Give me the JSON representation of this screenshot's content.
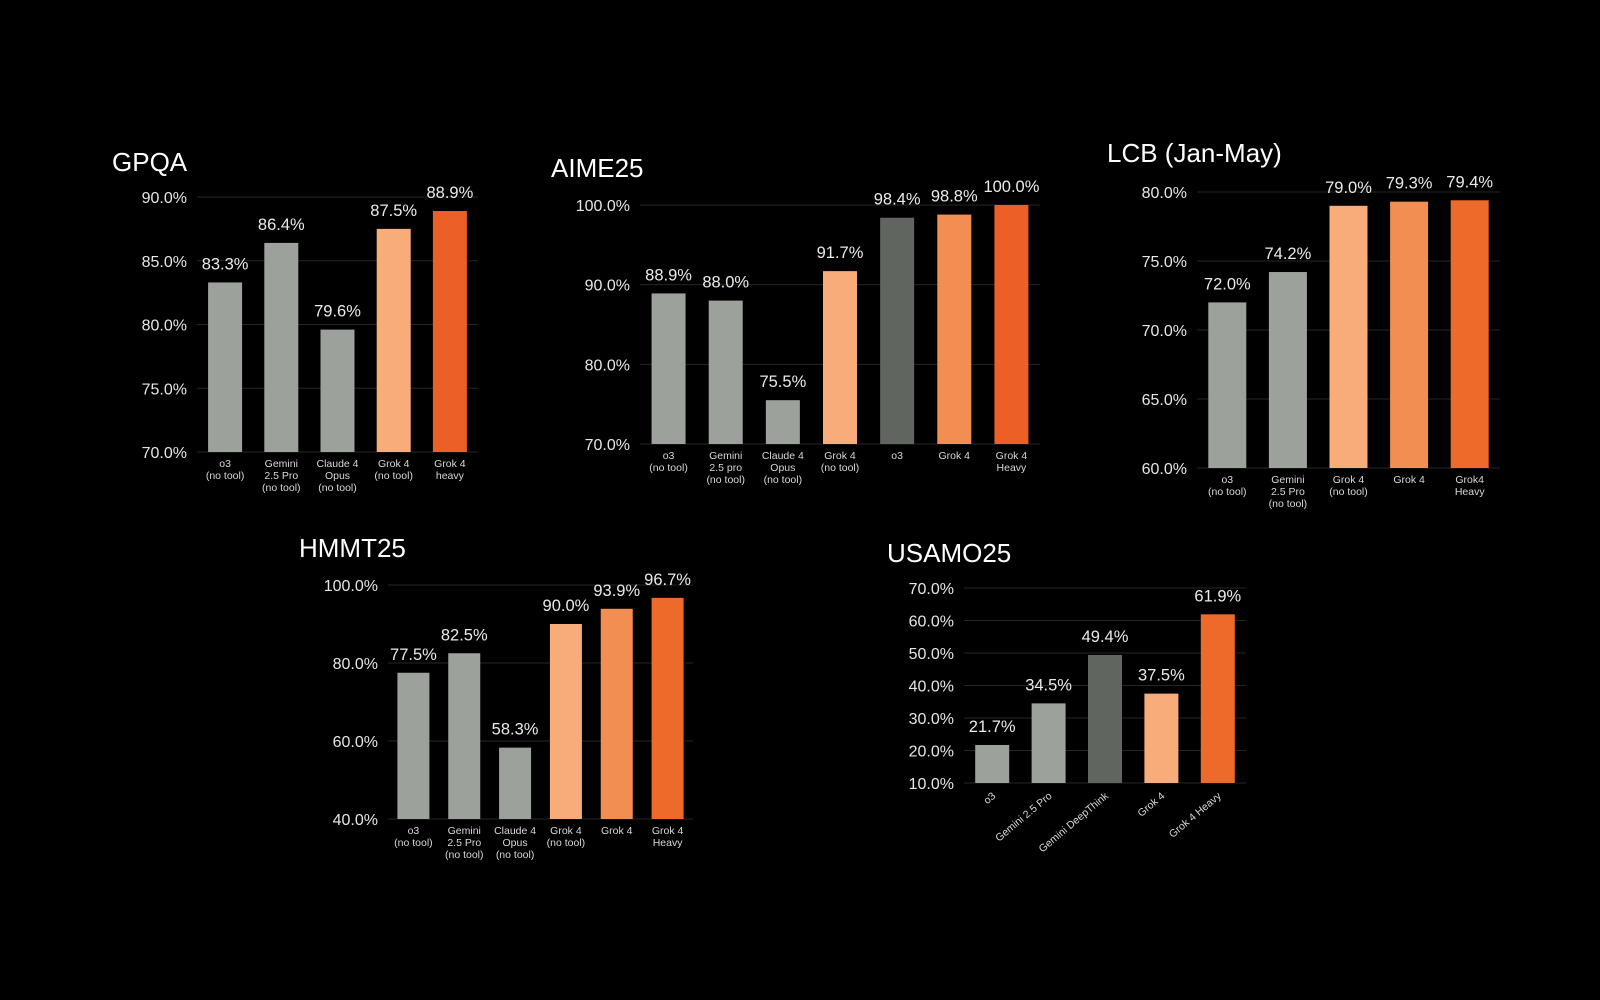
{
  "colors": {
    "gray": "#9da19c",
    "dark_gray": "#61655f",
    "light_orange": "#f7ac7a",
    "mid_orange": "#f28e52",
    "orange": "#ed6a2b",
    "heavy": "#ec5f26"
  },
  "chart_data": [
    {
      "id": "gpqa",
      "type": "bar",
      "title": "GPQA",
      "ylim": [
        70,
        90
      ],
      "yticks": [
        "70.0%",
        "75.0%",
        "80.0%",
        "85.0%",
        "90.0%"
      ],
      "ytick_values": [
        70,
        75,
        80,
        85,
        90
      ],
      "categories": [
        [
          "o3",
          "(no tool)"
        ],
        [
          "Gemini",
          "2.5 Pro",
          "(no tool)"
        ],
        [
          "Claude 4",
          "Opus",
          "(no tool)"
        ],
        [
          "Grok 4",
          "(no tool)"
        ],
        [
          "Grok 4",
          "heavy"
        ]
      ],
      "values": [
        83.3,
        86.4,
        79.6,
        87.5,
        88.9
      ],
      "labels": [
        "83.3%",
        "86.4%",
        "79.6%",
        "87.5%",
        "88.9%"
      ],
      "bar_colors": [
        "#9da19c",
        "#9da19c",
        "#9da19c",
        "#f7ac7a",
        "#ec5f26"
      ],
      "grid": true
    },
    {
      "id": "aime25",
      "type": "bar",
      "title": "AIME25",
      "ylim": [
        70,
        100
      ],
      "yticks": [
        "70.0%",
        "80.0%",
        "90.0%",
        "100.0%"
      ],
      "ytick_values": [
        70,
        80,
        90,
        100
      ],
      "categories": [
        [
          "o3",
          "(no tool)"
        ],
        [
          "Gemini",
          "2.5 pro",
          "(no tool)"
        ],
        [
          "Claude 4",
          "Opus",
          "(no tool)"
        ],
        [
          "Grok 4",
          "(no tool)"
        ],
        [
          "o3"
        ],
        [
          "Grok 4"
        ],
        [
          "Grok 4",
          "Heavy"
        ]
      ],
      "values": [
        88.9,
        88.0,
        75.5,
        91.7,
        98.4,
        98.8,
        100.0
      ],
      "labels": [
        "88.9%",
        "88.0%",
        "75.5%",
        "91.7%",
        "98.4%",
        "98.8%",
        "100.0%"
      ],
      "bar_colors": [
        "#9da19c",
        "#9da19c",
        "#9da19c",
        "#f7ac7a",
        "#61655f",
        "#f28e52",
        "#ec5f26"
      ],
      "grid": true
    },
    {
      "id": "lcb",
      "type": "bar",
      "title": "LCB (Jan-May)",
      "ylim": [
        60,
        80
      ],
      "yticks": [
        "60.0%",
        "65.0%",
        "70.0%",
        "75.0%",
        "80.0%"
      ],
      "ytick_values": [
        60,
        65,
        70,
        75,
        80
      ],
      "categories": [
        [
          "o3",
          "(no tool)"
        ],
        [
          "Gemini",
          "2.5 Pro",
          "(no tool)"
        ],
        [
          "Grok 4",
          "(no tool)"
        ],
        [
          "Grok 4"
        ],
        [
          "Grok4",
          "Heavy"
        ]
      ],
      "values": [
        72.0,
        74.2,
        79.0,
        79.3,
        79.4
      ],
      "labels": [
        "72.0%",
        "74.2%",
        "79.0%",
        "79.3%",
        "79.4%"
      ],
      "bar_colors": [
        "#9da19c",
        "#9da19c",
        "#f7ac7a",
        "#f28e52",
        "#ed6a2b"
      ],
      "grid": true
    },
    {
      "id": "hmmt25",
      "type": "bar",
      "title": "HMMT25",
      "ylim": [
        40,
        100
      ],
      "yticks": [
        "40.0%",
        "60.0%",
        "80.0%",
        "100.0%"
      ],
      "ytick_values": [
        40,
        60,
        80,
        100
      ],
      "categories": [
        [
          "o3",
          "(no tool)"
        ],
        [
          "Gemini",
          "2.5 Pro",
          "(no tool)"
        ],
        [
          "Claude 4",
          "Opus",
          "(no tool)"
        ],
        [
          "Grok 4",
          "(no tool)"
        ],
        [
          "Grok 4"
        ],
        [
          "Grok 4",
          "Heavy"
        ]
      ],
      "values": [
        77.5,
        82.5,
        58.3,
        90.0,
        93.9,
        96.7
      ],
      "labels": [
        "77.5%",
        "82.5%",
        "58.3%",
        "90.0%",
        "93.9%",
        "96.7%"
      ],
      "bar_colors": [
        "#9da19c",
        "#9da19c",
        "#9da19c",
        "#f7ac7a",
        "#f28e52",
        "#ed6a2b"
      ],
      "grid": true
    },
    {
      "id": "usamo25",
      "type": "bar",
      "title": "USAMO25",
      "ylim": [
        10,
        70
      ],
      "yticks": [
        "10.0%",
        "20.0%",
        "30.0%",
        "40.0%",
        "50.0%",
        "60.0%",
        "70.0%"
      ],
      "ytick_values": [
        10,
        20,
        30,
        40,
        50,
        60,
        70
      ],
      "categories": [
        [
          "o3"
        ],
        [
          "Gemini 2.5 Pro"
        ],
        [
          "Gemini DeepThink"
        ],
        [
          "Grok 4"
        ],
        [
          "Grok 4 Heavy"
        ]
      ],
      "values": [
        21.7,
        34.5,
        49.4,
        37.5,
        61.9
      ],
      "labels": [
        "21.7%",
        "34.5%",
        "49.4%",
        "37.5%",
        "61.9%"
      ],
      "bar_colors": [
        "#9da19c",
        "#9da19c",
        "#61655f",
        "#f7ac7a",
        "#ed6a2b"
      ],
      "grid": true,
      "rotated_labels": true
    }
  ]
}
